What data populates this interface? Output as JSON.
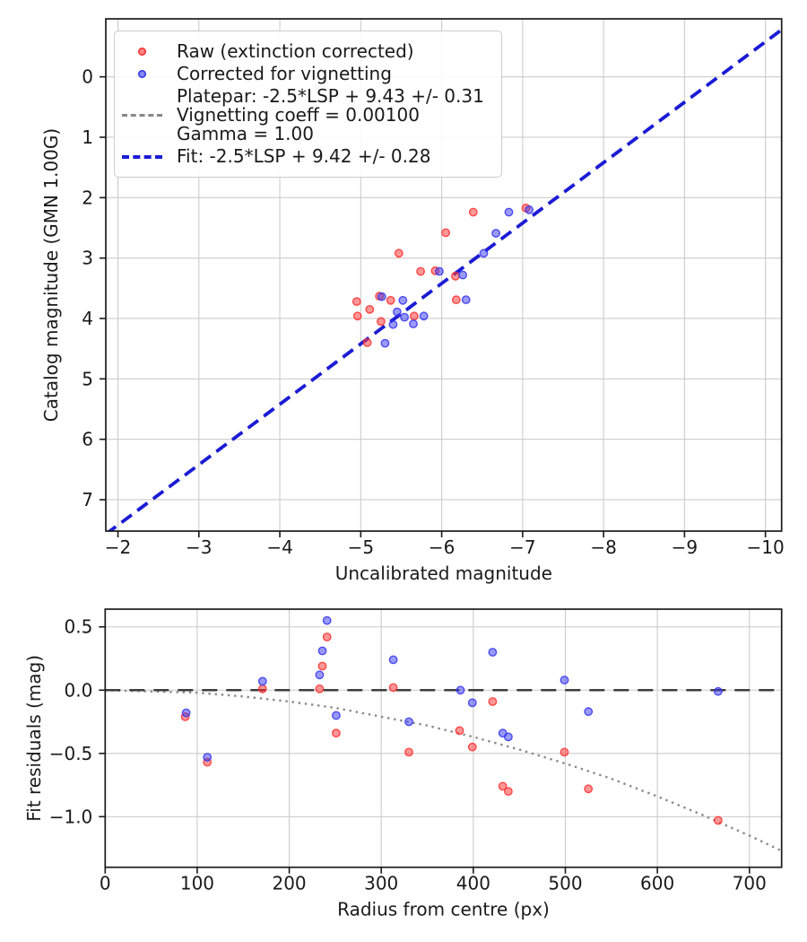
{
  "legend": {
    "raw_label": "Raw (extinction corrected)",
    "corrected_label": "Corrected for vignetting",
    "platepar_line1": "Platepar: -2.5*LSP + 9.43 +/- 0.31",
    "platepar_line2": "Vignetting coeff = 0.00100",
    "platepar_line3": "Gamma = 1.00",
    "fit_label": "Fit: -2.5*LSP + 9.42 +/- 0.28"
  },
  "colors": {
    "raw": "#ff3030",
    "corrected": "#3535f0",
    "fit": "#1b1bd6",
    "platepar": "#888888",
    "grid": "#cccccc",
    "spine": "#1a1a1a",
    "zero_line": "#3d3d3d",
    "curve": "#8a8a8a"
  },
  "chart_data": [
    {
      "type": "scatter",
      "xlabel": "Uncalibrated magnitude",
      "ylabel": "Catalog magnitude (GMN 1.00G)",
      "xlim": [
        -1.85,
        -10.2
      ],
      "ylim_top_to_bottom": [
        -0.96,
        7.52
      ],
      "xticks": [
        -2,
        -3,
        -4,
        -5,
        -6,
        -7,
        -8,
        -9,
        -10
      ],
      "yticks": [
        0,
        1,
        2,
        3,
        4,
        5,
        6,
        7
      ],
      "ytick_decimals": 0,
      "grid": true,
      "series": [
        {
          "name": "Raw (extinction corrected)",
          "color": "#ff3030",
          "points": [
            [
              -6.39,
              2.24
            ],
            [
              -7.04,
              2.17
            ],
            [
              -6.05,
              2.58
            ],
            [
              -5.47,
              2.92
            ],
            [
              -5.74,
              3.22
            ],
            [
              -5.92,
              3.21
            ],
            [
              -6.17,
              3.3
            ],
            [
              -6.18,
              3.69
            ],
            [
              -4.95,
              3.72
            ],
            [
              -4.96,
              3.96
            ],
            [
              -5.11,
              3.85
            ],
            [
              -5.23,
              3.63
            ],
            [
              -5.37,
              3.7
            ],
            [
              -5.25,
              4.05
            ],
            [
              -5.66,
              3.96
            ],
            [
              -5.08,
              4.4
            ]
          ]
        },
        {
          "name": "Corrected for vignetting",
          "color": "#3535f0",
          "points": [
            [
              -6.83,
              2.24
            ],
            [
              -7.08,
              2.2
            ],
            [
              -6.67,
              2.59
            ],
            [
              -6.52,
              2.92
            ],
            [
              -5.97,
              3.22
            ],
            [
              -6.26,
              3.28
            ],
            [
              -6.3,
              3.69
            ],
            [
              -5.26,
              3.64
            ],
            [
              -5.52,
              3.7
            ],
            [
              -5.45,
              3.89
            ],
            [
              -5.54,
              3.98
            ],
            [
              -5.78,
              3.96
            ],
            [
              -5.65,
              4.09
            ],
            [
              -5.4,
              4.1
            ],
            [
              -5.3,
              4.41
            ]
          ]
        }
      ],
      "platepar_line": {
        "label": "Platepar: -2.5*LSP + 9.43 +/- 0.31 | Vignetting coeff = 0.00100 | Gamma = 1.00",
        "slope": 1,
        "intercept": 9.43,
        "color": "#888888",
        "style": "dashed"
      },
      "fit_line": {
        "label": "Fit: -2.5*LSP + 9.42 +/- 0.28",
        "slope": 1,
        "intercept": 9.42,
        "color": "#1b1bd6",
        "style": "dashed"
      }
    },
    {
      "type": "scatter",
      "xlabel": "Radius from centre (px)",
      "ylabel": "Fit residuals (mag)",
      "xlim": [
        0,
        735
      ],
      "ylim_top_to_bottom": [
        0.64,
        -1.4
      ],
      "xticks": [
        0,
        100,
        200,
        300,
        400,
        500,
        600,
        700
      ],
      "yticks": [
        0.5,
        0.0,
        -0.5,
        -1.0
      ],
      "ytick_decimals": 1,
      "grid": true,
      "series": [
        {
          "name": "Raw (extinction corrected)",
          "color": "#ff3030",
          "points": [
            [
              87,
              -0.21
            ],
            [
              111,
              -0.57
            ],
            [
              171,
              0.01
            ],
            [
              233,
              0.01
            ],
            [
              236,
              0.19
            ],
            [
              241,
              0.42
            ],
            [
              251,
              -0.34
            ],
            [
              313,
              0.02
            ],
            [
              330,
              -0.49
            ],
            [
              385,
              -0.32
            ],
            [
              399,
              -0.45
            ],
            [
              421,
              -0.09
            ],
            [
              432,
              -0.76
            ],
            [
              438,
              -0.8
            ],
            [
              499,
              -0.49
            ],
            [
              525,
              -0.78
            ],
            [
              666,
              -1.03
            ]
          ]
        },
        {
          "name": "Corrected for vignetting",
          "color": "#3535f0",
          "points": [
            [
              88,
              -0.18
            ],
            [
              111,
              -0.53
            ],
            [
              171,
              0.07
            ],
            [
              233,
              0.12
            ],
            [
              236,
              0.31
            ],
            [
              241,
              0.55
            ],
            [
              251,
              -0.2
            ],
            [
              313,
              0.24
            ],
            [
              330,
              -0.25
            ],
            [
              386,
              0.0
            ],
            [
              399,
              -0.1
            ],
            [
              421,
              0.3
            ],
            [
              432,
              -0.34
            ],
            [
              438,
              -0.37
            ],
            [
              499,
              0.08
            ],
            [
              525,
              -0.17
            ],
            [
              666,
              -0.01
            ]
          ]
        }
      ],
      "zero_line": {
        "y": 0.0,
        "color": "#3d3d3d",
        "style": "dashed"
      },
      "vignetting_curve": {
        "color": "#8a8a8a",
        "style": "dotted",
        "points": [
          [
            0,
            0
          ],
          [
            50,
            -0.01
          ],
          [
            100,
            -0.02
          ],
          [
            150,
            -0.05
          ],
          [
            200,
            -0.09
          ],
          [
            250,
            -0.14
          ],
          [
            300,
            -0.21
          ],
          [
            350,
            -0.28
          ],
          [
            400,
            -0.37
          ],
          [
            450,
            -0.47
          ],
          [
            500,
            -0.58
          ],
          [
            550,
            -0.7
          ],
          [
            600,
            -0.84
          ],
          [
            650,
            -0.99
          ],
          [
            700,
            -1.15
          ],
          [
            735,
            -1.27
          ]
        ]
      }
    }
  ]
}
